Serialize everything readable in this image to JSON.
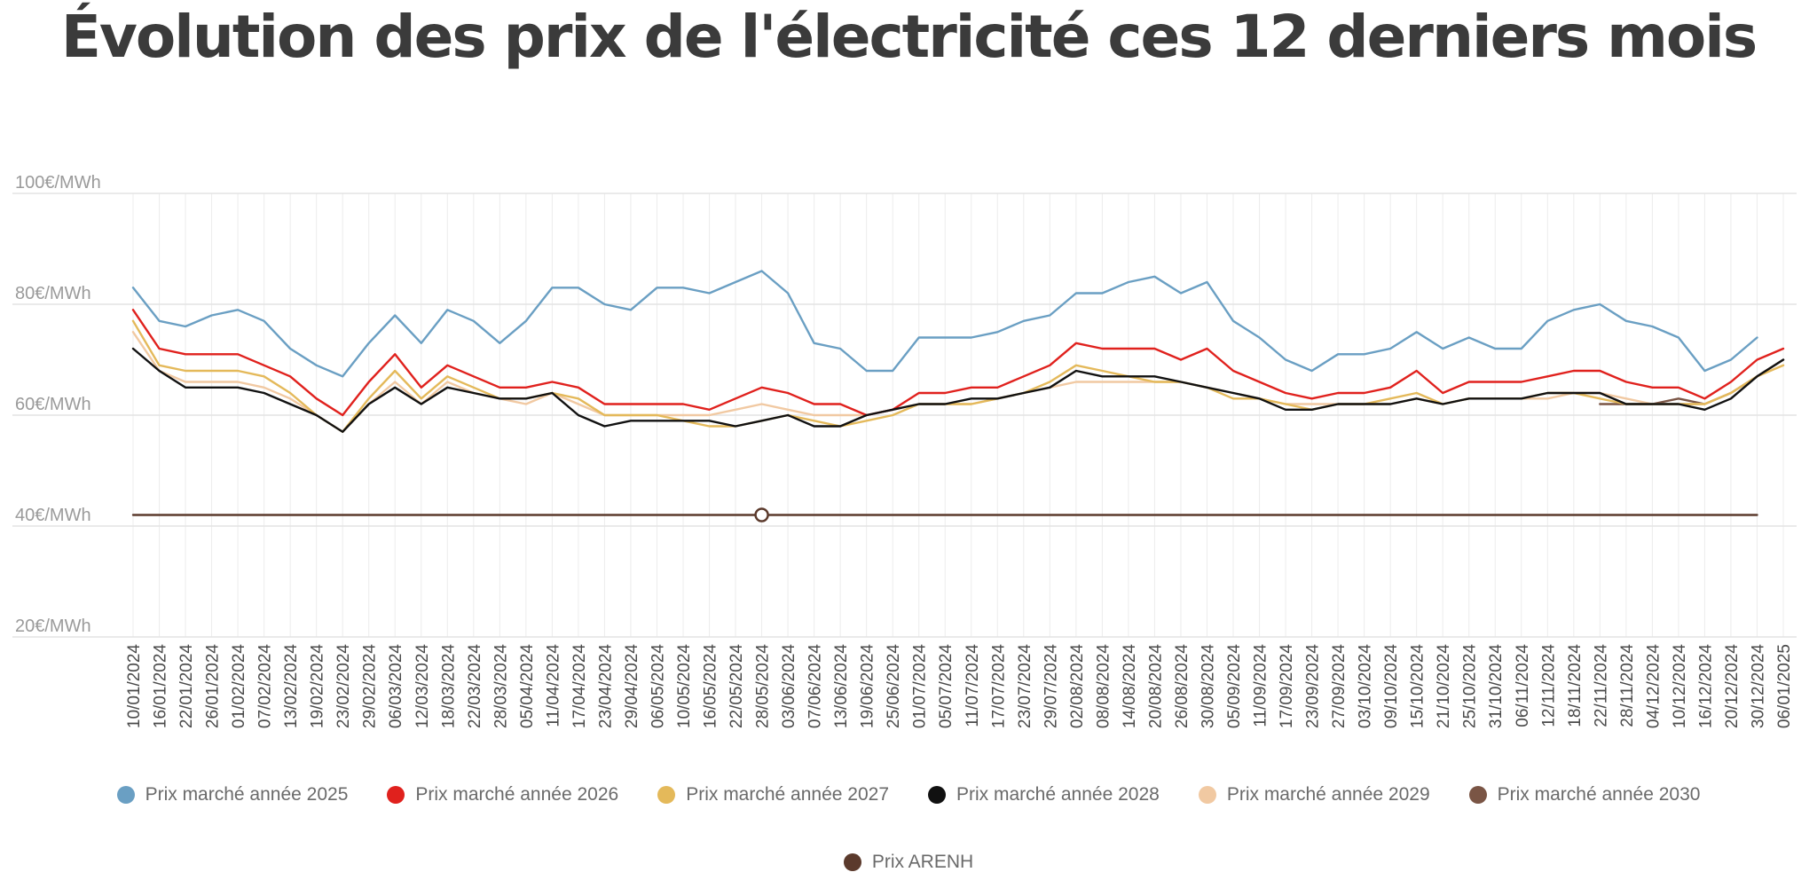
{
  "chart_data": {
    "type": "line",
    "title": "Évolution des prix de l'électricité ces 12 derniers mois",
    "ylim": [
      20,
      100
    ],
    "y_ticks": [
      "100€/MWh",
      "80€/MWh",
      "60€/MWh",
      "40€/MWh",
      "20€/MWh"
    ],
    "y_tick_values": [
      100,
      80,
      60,
      40,
      20
    ],
    "grid": true,
    "legend_position": "bottom",
    "x": [
      "10/01/2024",
      "16/01/2024",
      "22/01/2024",
      "26/01/2024",
      "01/02/2024",
      "07/02/2024",
      "13/02/2024",
      "19/02/2024",
      "23/02/2024",
      "29/02/2024",
      "06/03/2024",
      "12/03/2024",
      "18/03/2024",
      "22/03/2024",
      "28/03/2024",
      "05/04/2024",
      "11/04/2024",
      "17/04/2024",
      "23/04/2024",
      "29/04/2024",
      "06/05/2024",
      "10/05/2024",
      "16/05/2024",
      "22/05/2024",
      "28/05/2024",
      "03/06/2024",
      "07/06/2024",
      "13/06/2024",
      "19/06/2024",
      "25/06/2024",
      "01/07/2024",
      "05/07/2024",
      "11/07/2024",
      "17/07/2024",
      "23/07/2024",
      "29/07/2024",
      "02/08/2024",
      "08/08/2024",
      "14/08/2024",
      "20/08/2024",
      "26/08/2024",
      "30/08/2024",
      "05/09/2024",
      "11/09/2024",
      "17/09/2024",
      "23/09/2024",
      "27/09/2024",
      "03/10/2024",
      "09/10/2024",
      "15/10/2024",
      "21/10/2024",
      "25/10/2024",
      "31/10/2024",
      "06/11/2024",
      "12/11/2024",
      "18/11/2024",
      "22/11/2024",
      "28/11/2024",
      "04/12/2024",
      "10/12/2024",
      "16/12/2024",
      "20/12/2024",
      "30/12/2024",
      "06/01/2025"
    ],
    "series": [
      {
        "name": "Prix marché année 2025",
        "color": "#6a9fc3",
        "values": [
          83,
          77,
          76,
          78,
          79,
          77,
          72,
          69,
          67,
          73,
          78,
          73,
          79,
          77,
          73,
          77,
          83,
          83,
          80,
          79,
          83,
          83,
          82,
          84,
          86,
          82,
          73,
          72,
          68,
          68,
          74,
          74,
          74,
          75,
          77,
          78,
          82,
          82,
          84,
          85,
          82,
          84,
          77,
          74,
          70,
          68,
          71,
          71,
          72,
          75,
          72,
          74,
          72,
          72,
          77,
          79,
          80,
          77,
          76,
          74,
          68,
          70,
          74,
          null
        ]
      },
      {
        "name": "Prix marché année 2026",
        "color": "#e0211d",
        "values": [
          79,
          72,
          71,
          71,
          71,
          69,
          67,
          63,
          60,
          66,
          71,
          65,
          69,
          67,
          65,
          65,
          66,
          65,
          62,
          62,
          62,
          62,
          61,
          63,
          65,
          64,
          62,
          62,
          60,
          61,
          64,
          64,
          65,
          65,
          67,
          69,
          73,
          72,
          72,
          72,
          70,
          72,
          68,
          66,
          64,
          63,
          64,
          64,
          65,
          68,
          64,
          66,
          66,
          66,
          67,
          68,
          68,
          66,
          65,
          65,
          63,
          66,
          70,
          72
        ]
      },
      {
        "name": "Prix marché année 2027",
        "color": "#e4b95a",
        "values": [
          77,
          69,
          68,
          68,
          68,
          67,
          64,
          60,
          57,
          63,
          68,
          63,
          67,
          65,
          63,
          63,
          64,
          63,
          60,
          60,
          60,
          59,
          58,
          58,
          59,
          60,
          59,
          58,
          59,
          60,
          62,
          62,
          62,
          63,
          64,
          66,
          69,
          68,
          67,
          66,
          66,
          65,
          63,
          63,
          62,
          61,
          62,
          62,
          63,
          64,
          62,
          63,
          63,
          63,
          64,
          64,
          63,
          62,
          62,
          62,
          62,
          64,
          67,
          69
        ]
      },
      {
        "name": "Prix marché année 2028",
        "color": "#111111",
        "values": [
          72,
          68,
          65,
          65,
          65,
          64,
          62,
          60,
          57,
          62,
          65,
          62,
          65,
          64,
          63,
          63,
          64,
          60,
          58,
          59,
          59,
          59,
          59,
          58,
          59,
          60,
          58,
          58,
          60,
          61,
          62,
          62,
          63,
          63,
          64,
          65,
          68,
          67,
          67,
          67,
          66,
          65,
          64,
          63,
          61,
          61,
          62,
          62,
          62,
          63,
          62,
          63,
          63,
          63,
          64,
          64,
          64,
          62,
          62,
          62,
          61,
          63,
          67,
          70
        ]
      },
      {
        "name": "Prix marché année 2029",
        "color": "#f1c9a2",
        "values": [
          75,
          68,
          66,
          66,
          66,
          65,
          63,
          60,
          57,
          62,
          66,
          62,
          66,
          64,
          63,
          62,
          64,
          62,
          60,
          60,
          60,
          60,
          60,
          61,
          62,
          61,
          60,
          60,
          60,
          61,
          62,
          62,
          62,
          63,
          64,
          65,
          66,
          66,
          66,
          66,
          66,
          65,
          64,
          63,
          62,
          62,
          62,
          62,
          62,
          63,
          62,
          63,
          63,
          63,
          63,
          64,
          64,
          63,
          62,
          62,
          62,
          64,
          67,
          69
        ]
      },
      {
        "name": "Prix marché année 2030",
        "color": "#7a5545",
        "values": [
          null,
          null,
          null,
          null,
          null,
          null,
          null,
          null,
          null,
          null,
          null,
          null,
          null,
          null,
          null,
          null,
          null,
          null,
          null,
          null,
          null,
          null,
          null,
          null,
          null,
          null,
          null,
          null,
          null,
          null,
          null,
          null,
          null,
          null,
          null,
          null,
          null,
          null,
          null,
          null,
          null,
          null,
          null,
          null,
          null,
          null,
          null,
          null,
          null,
          null,
          null,
          null,
          null,
          null,
          null,
          null,
          62,
          62,
          62,
          63,
          62,
          64,
          67,
          70
        ]
      },
      {
        "name": "Prix ARENH",
        "color": "#5b3a2c",
        "values": [
          42,
          42,
          42,
          42,
          42,
          42,
          42,
          42,
          42,
          42,
          42,
          42,
          42,
          42,
          42,
          42,
          42,
          42,
          42,
          42,
          42,
          42,
          42,
          42,
          42,
          42,
          42,
          42,
          42,
          42,
          42,
          42,
          42,
          42,
          42,
          42,
          42,
          42,
          42,
          42,
          42,
          42,
          42,
          42,
          42,
          42,
          42,
          42,
          42,
          42,
          42,
          42,
          42,
          42,
          42,
          42,
          42,
          42,
          42,
          42,
          42,
          42,
          42,
          null
        ]
      }
    ]
  }
}
